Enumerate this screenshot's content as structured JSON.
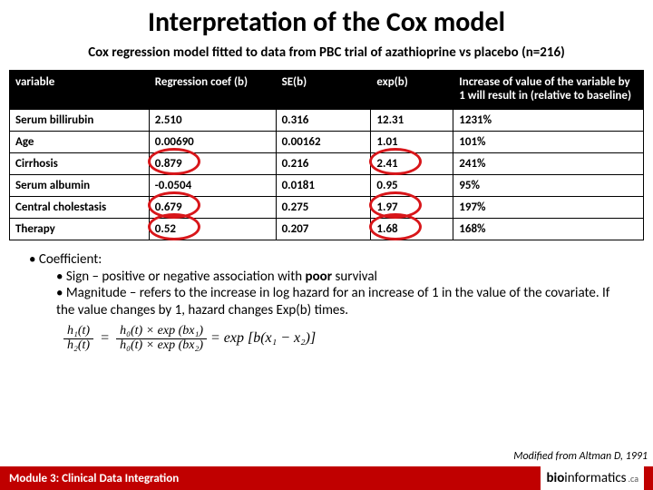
{
  "title": "Interpretation of the Cox model",
  "subtitle": "Cox regression model fitted to data from PBC trial of azathioprine vs placebo (n=216)",
  "table": {
    "columns": [
      "variable",
      "Regression coef (b)",
      "SE(b)",
      "exp(b)",
      "Increase of value of the variable by 1 will result in (relative to baseline)"
    ],
    "rows": [
      {
        "variable": "Serum billirubin",
        "coef": "2.510",
        "se": "0.316",
        "exp": "12.31",
        "inc": "1231%"
      },
      {
        "variable": "Age",
        "coef": "0.00690",
        "se": "0.00162",
        "exp": "1.01",
        "inc": "101%"
      },
      {
        "variable": "Cirrhosis",
        "coef": "0.879",
        "se": "0.216",
        "exp": "2.41",
        "inc": "241%",
        "circle_coef": true,
        "circle_exp": true
      },
      {
        "variable": "Serum albumin",
        "coef": "-0.0504",
        "se": "0.0181",
        "exp": "0.95",
        "inc": "95%"
      },
      {
        "variable": "Central cholestasis",
        "coef": "0.679",
        "se": "0.275",
        "exp": "1.97",
        "inc": "197%",
        "circle_coef": true,
        "circle_exp": true
      },
      {
        "variable": "Therapy",
        "coef": "0.52",
        "se": "0.207",
        "exp": "1.68",
        "inc": "168%",
        "circle_coef": true,
        "circle_exp": true
      }
    ],
    "circle_color": "#d8161a"
  },
  "bullets": {
    "b1": "• Coefficient:",
    "b2a_pre": "• Sign – positive or negative association with ",
    "b2a_bold": "poor",
    "b2a_post": " survival",
    "b2b": "• Magnitude – refers to the increase in log hazard for an increase of 1 in the value of the covariate. If the value changes by 1, hazard changes Exp(b) times."
  },
  "equation": {
    "num1": "h₁(t)",
    "den1": "h₂(t)",
    "num2": "h₀(t) × exp (bx₁)",
    "den2": "h₀(t) × exp (bx₂)",
    "rhs": "= exp [b(x₁ − x₂)]"
  },
  "modified": "Modified from Altman D, 1991",
  "footer": {
    "module": "Module 3:  Clinical Data Integration",
    "brand_bold": "bio",
    "brand_thin": "informatics",
    "brand_ca": ".ca"
  }
}
